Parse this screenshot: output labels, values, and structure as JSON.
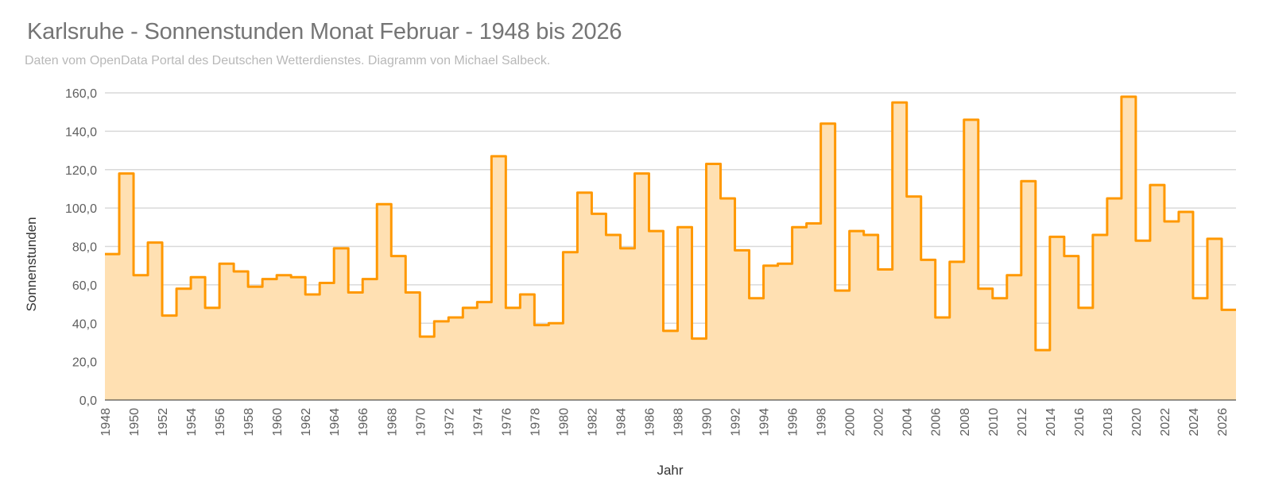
{
  "chart_data": {
    "type": "area",
    "style": "stepped",
    "title": "Karlsruhe - Sonnenstunden Monat Februar - 1948 bis 2026",
    "subtitle": "Daten vom OpenData Portal des Deutschen Wetterdienstes. Diagramm von Michael Salbeck.",
    "xlabel": "Jahr",
    "ylabel": "Sonnenstunden",
    "ylim": [
      0,
      160
    ],
    "yticks": [
      0,
      20,
      40,
      60,
      80,
      100,
      120,
      140,
      160
    ],
    "ytick_labels": [
      "0,0",
      "20,0",
      "40,0",
      "60,0",
      "80,0",
      "100,0",
      "120,0",
      "140,0",
      "160,0"
    ],
    "xticks": [
      1948,
      1950,
      1952,
      1954,
      1956,
      1958,
      1960,
      1962,
      1964,
      1966,
      1968,
      1970,
      1972,
      1974,
      1976,
      1978,
      1980,
      1982,
      1984,
      1986,
      1988,
      1990,
      1992,
      1994,
      1996,
      1998,
      2000,
      2002,
      2004,
      2006,
      2008,
      2010,
      2012,
      2014,
      2016,
      2018,
      2020,
      2022,
      2024,
      2026
    ],
    "grid": true,
    "legend": "none",
    "colors": {
      "line": "#ff9800",
      "fill": "#ffe0b2",
      "grid": "#d9d9d9",
      "title": "#757575",
      "subtitle": "#b8b8b8"
    },
    "x": [
      1948,
      1949,
      1950,
      1951,
      1952,
      1953,
      1954,
      1955,
      1956,
      1957,
      1958,
      1959,
      1960,
      1961,
      1962,
      1963,
      1964,
      1965,
      1966,
      1967,
      1968,
      1969,
      1970,
      1971,
      1972,
      1973,
      1974,
      1975,
      1976,
      1977,
      1978,
      1979,
      1980,
      1981,
      1982,
      1983,
      1984,
      1985,
      1986,
      1987,
      1988,
      1989,
      1990,
      1991,
      1992,
      1993,
      1994,
      1995,
      1996,
      1997,
      1998,
      1999,
      2000,
      2001,
      2002,
      2003,
      2004,
      2005,
      2006,
      2007,
      2008,
      2009,
      2010,
      2011,
      2012,
      2013,
      2014,
      2015,
      2016,
      2017,
      2018,
      2019,
      2020,
      2021,
      2022,
      2023,
      2024,
      2025,
      2026
    ],
    "series": [
      {
        "values": [
          76,
          118,
          65,
          82,
          44,
          58,
          64,
          48,
          71,
          67,
          59,
          63,
          65,
          64,
          55,
          61,
          79,
          56,
          63,
          102,
          75,
          56,
          33,
          41,
          43,
          48,
          51,
          127,
          48,
          55,
          39,
          40,
          77,
          108,
          97,
          86,
          79,
          118,
          88,
          36,
          90,
          32,
          123,
          105,
          78,
          53,
          70,
          71,
          90,
          92,
          144,
          57,
          88,
          86,
          68,
          155,
          106,
          73,
          43,
          72,
          146,
          58,
          53,
          65,
          114,
          26,
          85,
          75,
          48,
          86,
          105,
          158,
          83,
          112,
          93,
          98,
          53,
          84,
          47
        ]
      }
    ]
  }
}
